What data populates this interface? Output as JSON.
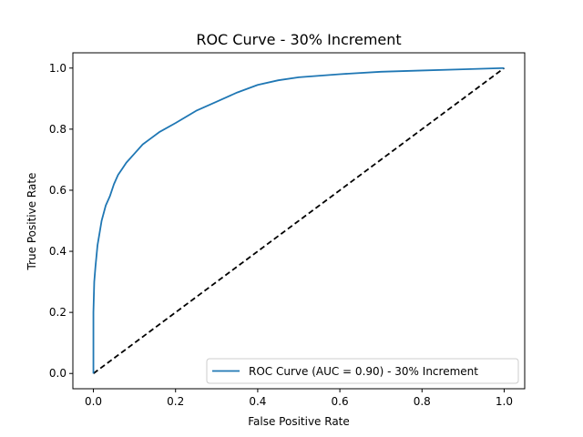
{
  "chart_data": {
    "type": "line",
    "title": "ROC Curve - 30% Increment",
    "xlabel": "False Positive Rate",
    "ylabel": "True Positive Rate",
    "xlim": [
      -0.05,
      1.05
    ],
    "ylim": [
      -0.05,
      1.05
    ],
    "x_ticks": [
      0.0,
      0.2,
      0.4,
      0.6,
      0.8,
      1.0
    ],
    "y_ticks": [
      0.0,
      0.2,
      0.4,
      0.6,
      0.8,
      1.0
    ],
    "x_tick_labels": [
      "0.0",
      "0.2",
      "0.4",
      "0.6",
      "0.8",
      "1.0"
    ],
    "y_tick_labels": [
      "0.0",
      "0.2",
      "0.4",
      "0.6",
      "0.8",
      "1.0"
    ],
    "grid": false,
    "legend_position": "lower-right",
    "series": [
      {
        "name": "ROC Curve (AUC = 0.90) - 30% Increment",
        "color": "#1f77b4",
        "style": "solid",
        "x": [
          0.0,
          0.0,
          0.002,
          0.005,
          0.01,
          0.015,
          0.02,
          0.03,
          0.04,
          0.05,
          0.06,
          0.07,
          0.08,
          0.1,
          0.12,
          0.14,
          0.16,
          0.2,
          0.25,
          0.3,
          0.35,
          0.4,
          0.45,
          0.5,
          0.6,
          0.7,
          0.8,
          0.9,
          1.0
        ],
        "y": [
          0.0,
          0.2,
          0.3,
          0.35,
          0.42,
          0.46,
          0.5,
          0.55,
          0.58,
          0.62,
          0.65,
          0.67,
          0.69,
          0.72,
          0.75,
          0.77,
          0.79,
          0.82,
          0.86,
          0.89,
          0.92,
          0.945,
          0.96,
          0.97,
          0.98,
          0.988,
          0.992,
          0.996,
          1.0
        ]
      },
      {
        "name": "",
        "color": "#000000",
        "style": "dashed",
        "x": [
          0.0,
          1.0
        ],
        "y": [
          0.0,
          1.0
        ]
      }
    ]
  }
}
